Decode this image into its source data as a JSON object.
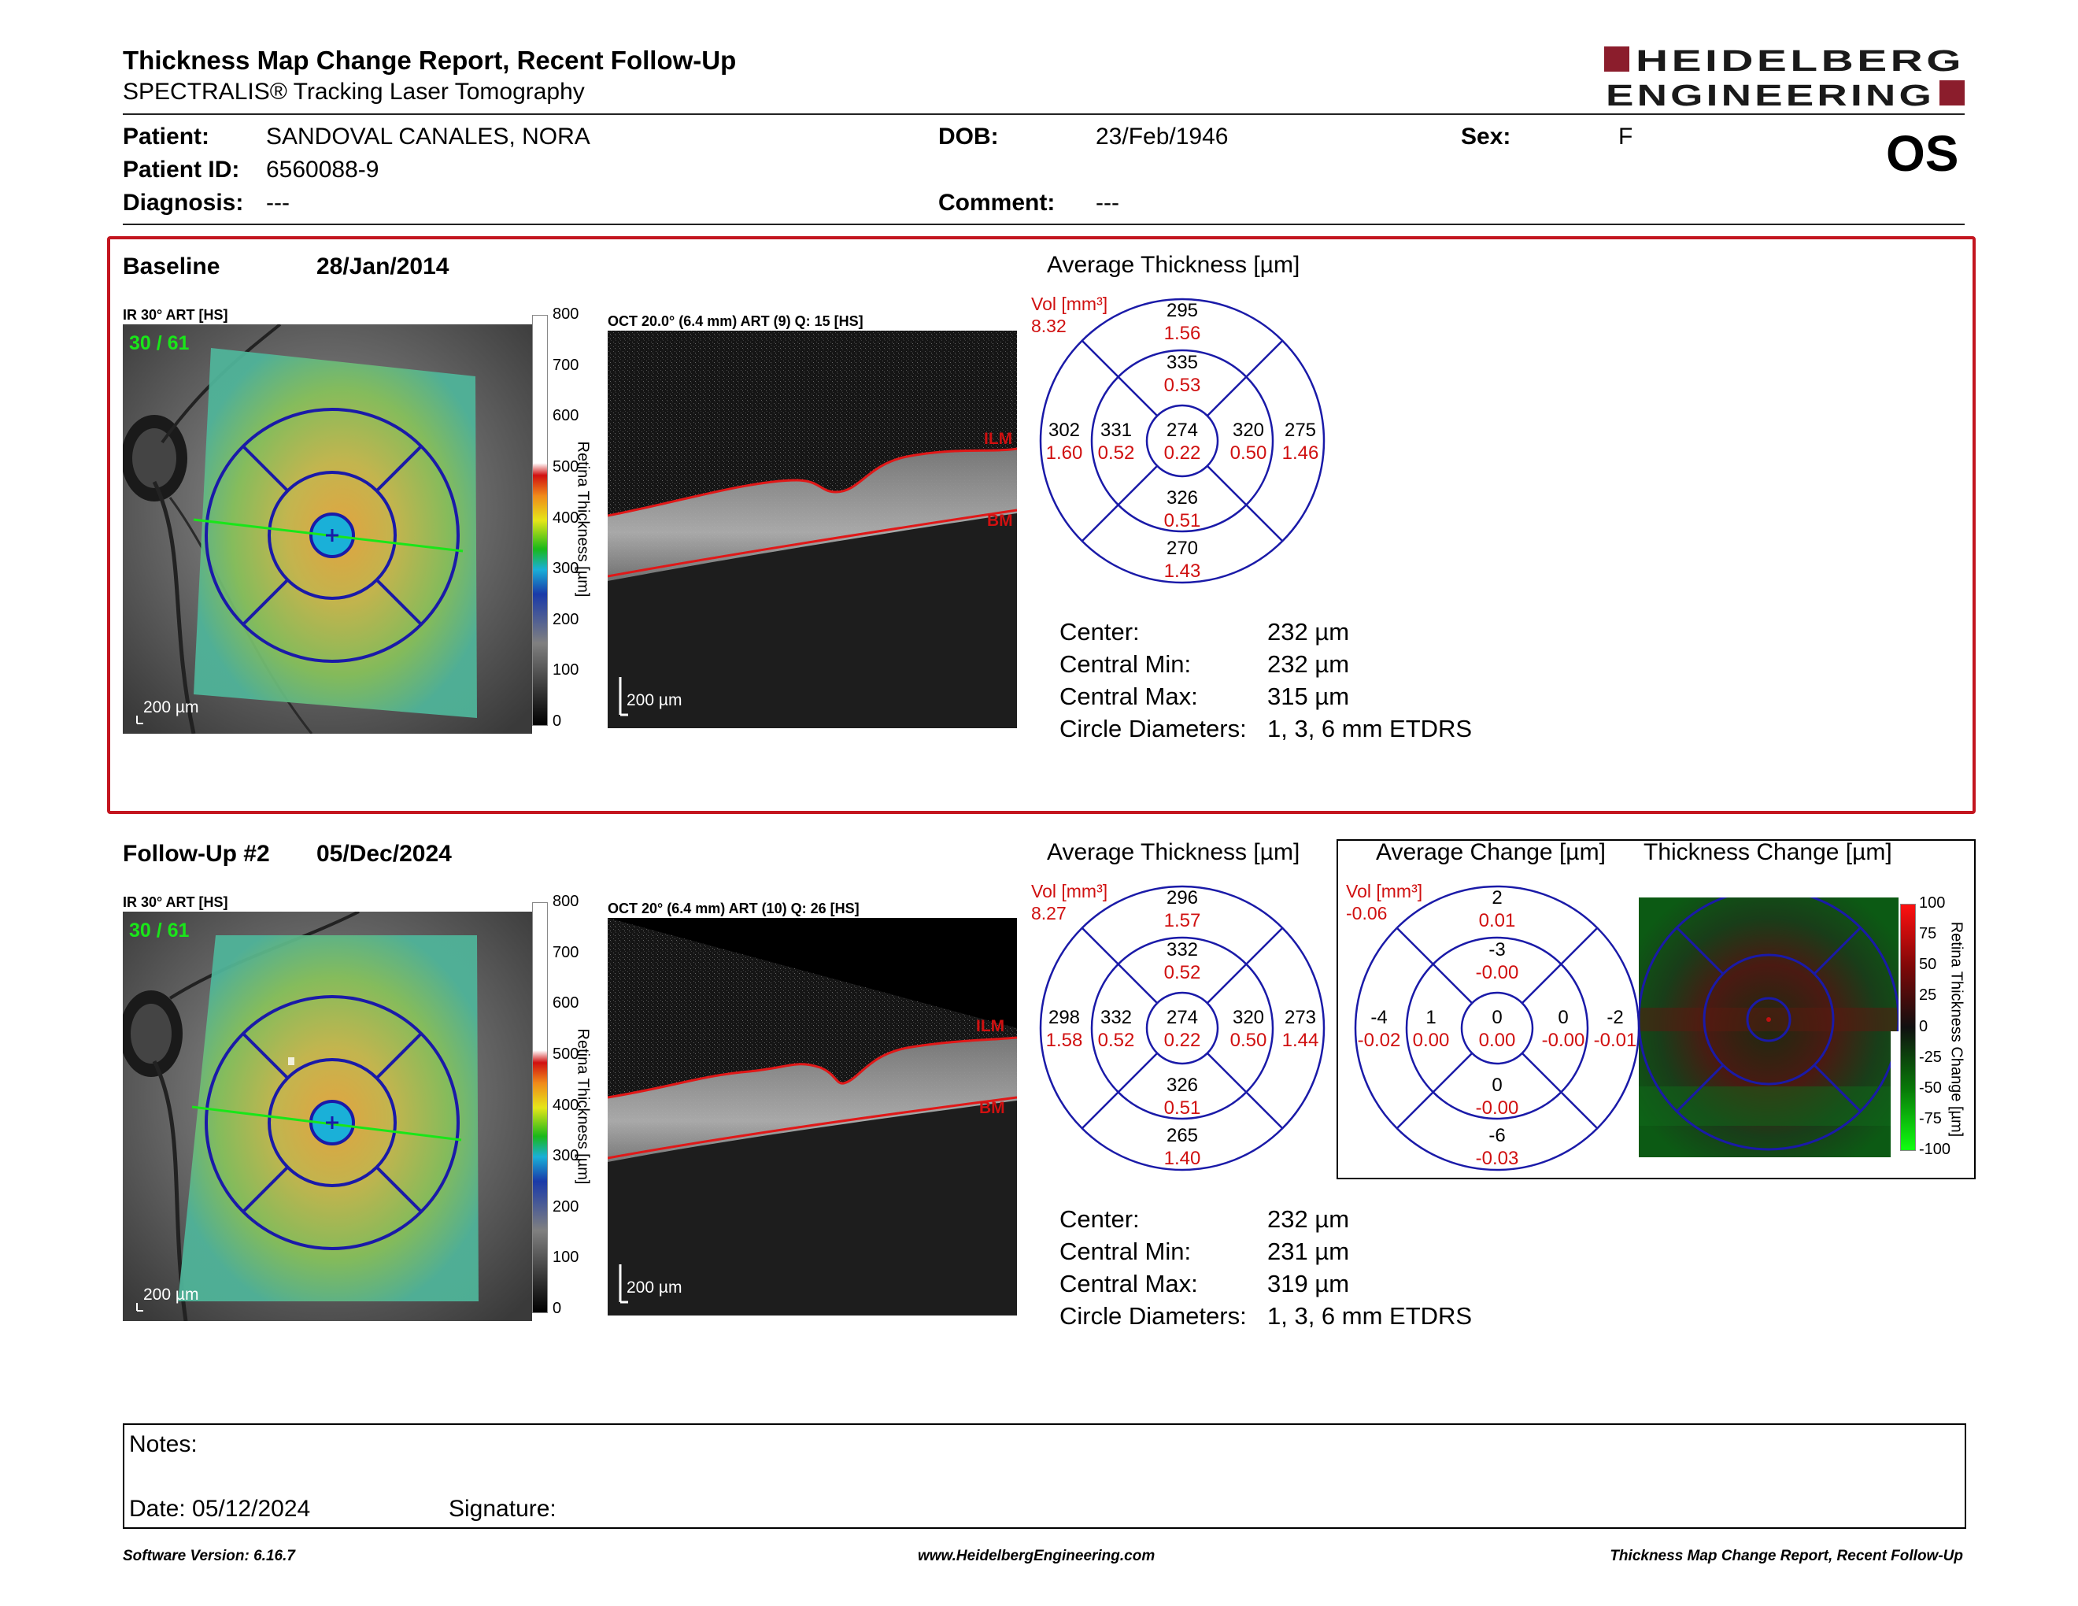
{
  "header": {
    "title": "Thickness Map Change Report, Recent Follow-Up",
    "subtitle": "SPECTRALIS® Tracking Laser Tomography",
    "logo_line1": "HEIDELBERG",
    "logo_line2": "ENGINEERING",
    "eye": "OS"
  },
  "patient": {
    "patient_label": "Patient:",
    "patient_value": "SANDOVAL CANALES, NORA",
    "id_label": "Patient ID:",
    "id_value": "6560088-9",
    "diagnosis_label": "Diagnosis:",
    "diagnosis_value": "---",
    "dob_label": "DOB:",
    "dob_value": "23/Feb/1946",
    "comment_label": "Comment:",
    "comment_value": "---",
    "sex_label": "Sex:",
    "sex_value": "F"
  },
  "baseline": {
    "label": "Baseline",
    "date": "28/Jan/2014",
    "ir_label": "IR 30° ART [HS]",
    "ir_counter": "30 / 61",
    "ir_scale": "200 µm",
    "colorbar_ticks": [
      "800",
      "700",
      "600",
      "500",
      "400",
      "300",
      "200",
      "100",
      "0"
    ],
    "colorbar_title": "Retina Thickness [µm]",
    "oct_label": "OCT 20.0° (6.4 mm) ART (9) Q: 15 [HS]",
    "oct_scale": "200 µm",
    "ilm": "ILM",
    "bm": "BM",
    "avg_title": "Average Thickness [µm]",
    "vol_label": "Vol [mm³]",
    "vol_total": "8.32",
    "etdrs": {
      "outer_sup": [
        "295",
        "1.56"
      ],
      "inner_sup": [
        "335",
        "0.53"
      ],
      "outer_temp": [
        "302",
        "1.60"
      ],
      "inner_temp": [
        "331",
        "0.52"
      ],
      "center": [
        "274",
        "0.22"
      ],
      "inner_nasal": [
        "320",
        "0.50"
      ],
      "outer_nasal": [
        "275",
        "1.46"
      ],
      "inner_inf": [
        "326",
        "0.51"
      ],
      "outer_inf": [
        "270",
        "1.43"
      ]
    },
    "stats": [
      {
        "label": "Center:",
        "value": "232 µm"
      },
      {
        "label": "Central Min:",
        "value": "232 µm"
      },
      {
        "label": "Central Max:",
        "value": "315 µm"
      },
      {
        "label": "Circle Diameters:",
        "value": "1, 3, 6 mm ETDRS"
      }
    ]
  },
  "followup": {
    "label": "Follow-Up #2",
    "date": "05/Dec/2024",
    "ir_label": "IR 30° ART [HS]",
    "ir_counter": "30 / 61",
    "ir_scale": "200 µm",
    "colorbar_ticks": [
      "800",
      "700",
      "600",
      "500",
      "400",
      "300",
      "200",
      "100",
      "0"
    ],
    "colorbar_title": "Retina Thickness [µm]",
    "oct_label": "OCT 20° (6.4 mm) ART (10) Q: 26 [HS]",
    "oct_scale": "200 µm",
    "ilm": "ILM",
    "bm": "BM",
    "avg_title": "Average Thickness [µm]",
    "vol_label": "Vol [mm³]",
    "vol_total": "8.27",
    "etdrs": {
      "outer_sup": [
        "296",
        "1.57"
      ],
      "inner_sup": [
        "332",
        "0.52"
      ],
      "outer_temp": [
        "298",
        "1.58"
      ],
      "inner_temp": [
        "332",
        "0.52"
      ],
      "center": [
        "274",
        "0.22"
      ],
      "inner_nasal": [
        "320",
        "0.50"
      ],
      "outer_nasal": [
        "273",
        "1.44"
      ],
      "inner_inf": [
        "326",
        "0.51"
      ],
      "outer_inf": [
        "265",
        "1.40"
      ]
    },
    "stats": [
      {
        "label": "Center:",
        "value": "232 µm"
      },
      {
        "label": "Central Min:",
        "value": "231 µm"
      },
      {
        "label": "Central Max:",
        "value": "319 µm"
      },
      {
        "label": "Circle Diameters:",
        "value": "1, 3, 6 mm ETDRS"
      }
    ]
  },
  "change": {
    "avg_change_title": "Average Change [µm]",
    "thickness_change_title": "Thickness Change [µm]",
    "vol_label": "Vol [mm³]",
    "vol_total": "-0.06",
    "etdrs": {
      "outer_sup": [
        "2",
        "0.01"
      ],
      "inner_sup": [
        "-3",
        "-0.00"
      ],
      "outer_temp": [
        "-4",
        "-0.02"
      ],
      "inner_temp": [
        "1",
        "0.00"
      ],
      "center": [
        "0",
        "0.00"
      ],
      "inner_nasal": [
        "0",
        "-0.00"
      ],
      "outer_nasal": [
        "-2",
        "-0.01"
      ],
      "inner_inf": [
        "0",
        "-0.00"
      ],
      "outer_inf": [
        "-6",
        "-0.03"
      ]
    },
    "colorbar_ticks": [
      "100",
      "75",
      "50",
      "25",
      "0",
      "-25",
      "-50",
      "-75",
      "-100"
    ],
    "colorbar_title": "Retina Thickness Change [µm]"
  },
  "notes": {
    "notes_label": "Notes:",
    "date_label": "Date: 05/12/2024",
    "signature_label": "Signature:"
  },
  "footer": {
    "software": "Software Version: 6.16.7",
    "website": "www.HeidelbergEngineering.com",
    "report": "Thickness Map Change Report, Recent Follow-Up"
  },
  "colors": {
    "brand": "#8b1d2c",
    "frame": "#c3151f",
    "etdrs_blue": "#1a1aa8",
    "volume_red": "#d01010"
  }
}
